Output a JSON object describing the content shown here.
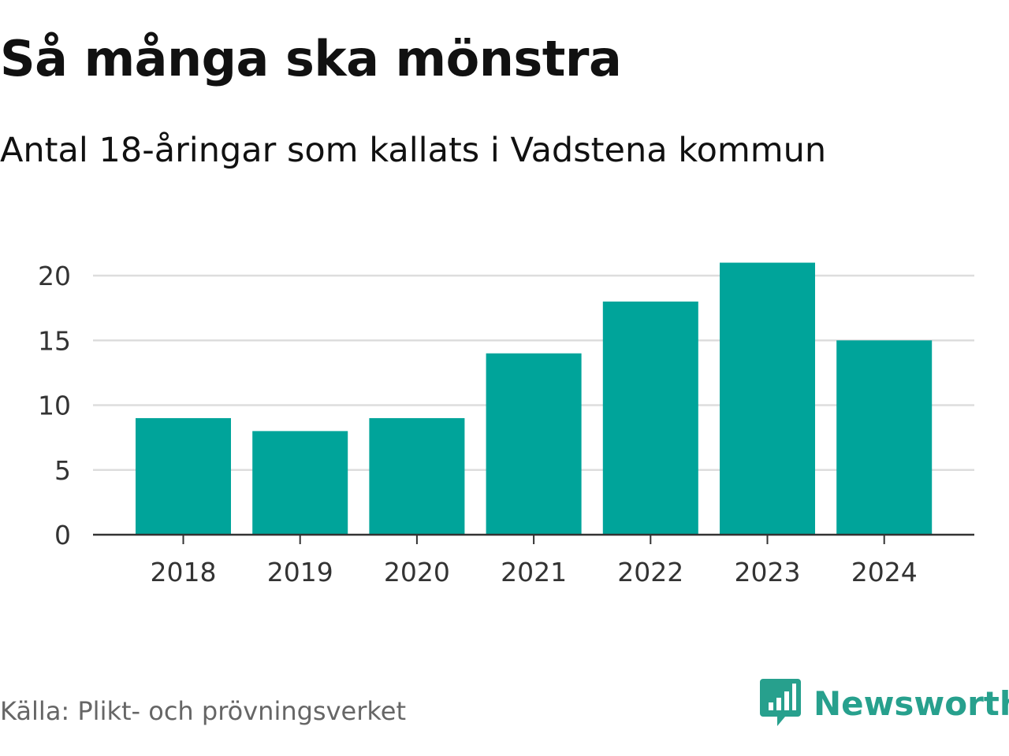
{
  "header": {
    "title": "Så många ska mönstra",
    "subtitle": "Antal 18-åringar som kallats i Vadstena kommun"
  },
  "footer": {
    "source": "Källa: Plikt- och prövningsverket",
    "brand": "Newsworthy",
    "brand_icon": "bar-chart-speech-bubble-icon"
  },
  "colors": {
    "bar": "#00a49a",
    "brand": "#27a08d",
    "grid": "#dddddd",
    "axis": "#333333"
  },
  "chart_data": {
    "type": "bar",
    "title": "Så många ska mönstra",
    "subtitle": "Antal 18-åringar som kallats i Vadstena kommun",
    "categories": [
      "2018",
      "2019",
      "2020",
      "2021",
      "2022",
      "2023",
      "2024"
    ],
    "values": [
      9,
      8,
      9,
      14,
      18,
      21,
      15
    ],
    "xlabel": "",
    "ylabel": "",
    "ylim": [
      0,
      20
    ],
    "yticks": [
      0,
      5,
      10,
      15,
      20
    ],
    "grid": true,
    "legend": "none"
  }
}
